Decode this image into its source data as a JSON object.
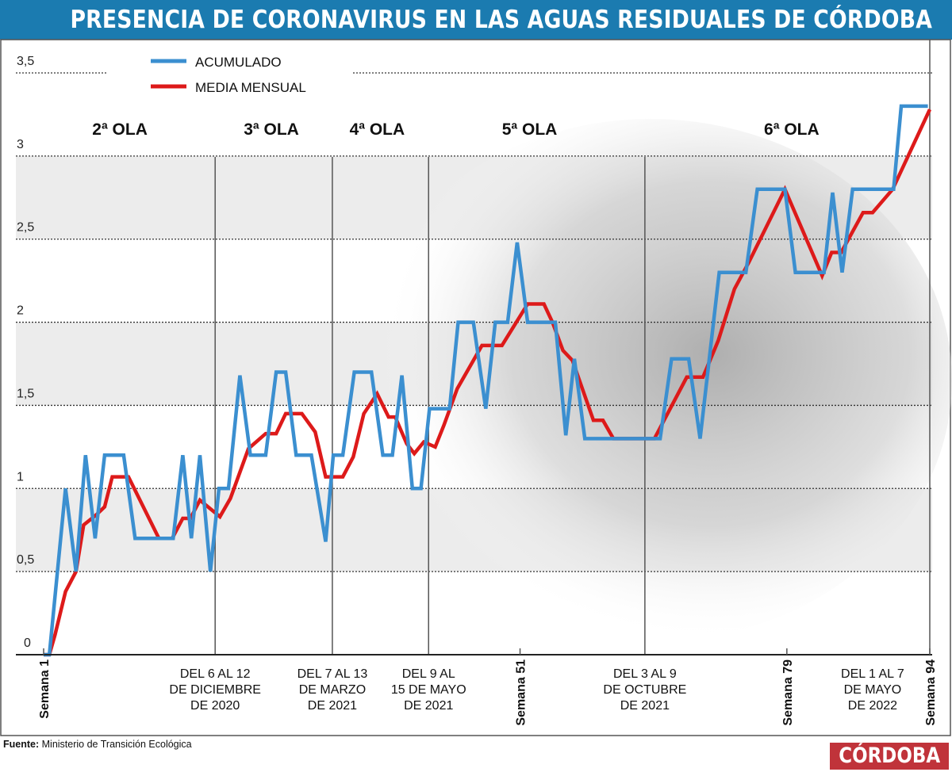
{
  "title": "PRESENCIA DE CORONAVIRUS EN LAS AGUAS RESIDUALES DE CÓRDOBA",
  "source_label": "Fuente:",
  "source_text": "Ministerio de Transición Ecológica",
  "logo": "CÓRDOBA",
  "colors": {
    "title_bar": "#1b7bb0",
    "acumulado": "#3b8fd0",
    "media_mensual": "#dd1a1a",
    "logo": "#c0333a"
  },
  "chart_data": {
    "type": "line",
    "title": "PRESENCIA DE CORONAVIRUS EN LAS AGUAS RESIDUALES DE CÓRDOBA",
    "xlabel": "",
    "ylabel": "",
    "xlim": [
      1,
      94
    ],
    "ylim": [
      0,
      3.5
    ],
    "yticks": [
      "0",
      "0,5",
      "1",
      "1,5",
      "2",
      "2,5",
      "3",
      "3,5"
    ],
    "grid": true,
    "legend_placement": "top-left",
    "x_labels": [
      {
        "week": 1,
        "text": "Semana 1",
        "rotated": true
      },
      {
        "week": 19,
        "lines": [
          "DEL 6  AL 12",
          "DE DICIEMBRE",
          "DE 2020"
        ]
      },
      {
        "week": 31.3,
        "lines": [
          "DEL 7  AL 13",
          "DE MARZO",
          "DE 2021"
        ]
      },
      {
        "week": 41.4,
        "lines": [
          "DEL 9  AL",
          "15 DE MAYO",
          "DE 2021"
        ]
      },
      {
        "week": 51,
        "text": "Semana 51",
        "rotated": true
      },
      {
        "week": 64.1,
        "lines": [
          "DEL 3  AL 9",
          "DE OCTUBRE",
          "DE 2021"
        ]
      },
      {
        "week": 79,
        "text": "Semana 79",
        "rotated": true
      },
      {
        "week": 88,
        "lines": [
          "DEL 1 AL 7",
          "DE MAYO",
          "DE 2022"
        ]
      },
      {
        "week": 94,
        "text": "Semana 94",
        "rotated": true
      }
    ],
    "vertical_markers": [
      19,
      31.3,
      41.4,
      64.1,
      94
    ],
    "wave_labels": [
      {
        "week": 9,
        "text": "2ª OLA"
      },
      {
        "week": 24.9,
        "text": "3ª OLA"
      },
      {
        "week": 36,
        "text": "4ª OLA"
      },
      {
        "week": 52,
        "text": "5ª OLA"
      },
      {
        "week": 79.5,
        "text": "6ª OLA"
      }
    ],
    "series": [
      {
        "name": "ACUMULADO",
        "color": "#3b8fd0",
        "points": [
          [
            1,
            0
          ],
          [
            1.6,
            0
          ],
          [
            3.3,
            1.0
          ],
          [
            4.4,
            0.5
          ],
          [
            5.4,
            1.2
          ],
          [
            6.4,
            0.7
          ],
          [
            7.4,
            1.2
          ],
          [
            9.4,
            1.2
          ],
          [
            10.6,
            0.7
          ],
          [
            14.6,
            0.7
          ],
          [
            15.6,
            1.2
          ],
          [
            16.5,
            0.7
          ],
          [
            17.4,
            1.2
          ],
          [
            18.5,
            0.5
          ],
          [
            19.4,
            1.0
          ],
          [
            20.4,
            1.0
          ],
          [
            21.6,
            1.68
          ],
          [
            22.7,
            1.2
          ],
          [
            24.3,
            1.2
          ],
          [
            25.4,
            1.7
          ],
          [
            26.4,
            1.7
          ],
          [
            27.5,
            1.2
          ],
          [
            29.1,
            1.2
          ],
          [
            30.6,
            0.68
          ],
          [
            31.4,
            1.2
          ],
          [
            32.4,
            1.2
          ],
          [
            33.6,
            1.7
          ],
          [
            35.4,
            1.7
          ],
          [
            36.6,
            1.2
          ],
          [
            37.6,
            1.2
          ],
          [
            38.6,
            1.68
          ],
          [
            39.7,
            1.0
          ],
          [
            40.6,
            1.0
          ],
          [
            41.5,
            1.48
          ],
          [
            43.6,
            1.48
          ],
          [
            44.5,
            2.0
          ],
          [
            46.1,
            2.0
          ],
          [
            47.4,
            1.48
          ],
          [
            48.4,
            2.0
          ],
          [
            49.7,
            2.0
          ],
          [
            50.7,
            2.48
          ],
          [
            51.8,
            2.0
          ],
          [
            54.7,
            2.0
          ],
          [
            55.8,
            1.32
          ],
          [
            56.7,
            1.78
          ],
          [
            57.8,
            1.3
          ],
          [
            65.7,
            1.3
          ],
          [
            66.9,
            1.78
          ],
          [
            68.7,
            1.78
          ],
          [
            69.9,
            1.3
          ],
          [
            71.9,
            2.3
          ],
          [
            74.7,
            2.3
          ],
          [
            75.9,
            2.8
          ],
          [
            78.8,
            2.8
          ],
          [
            79.9,
            2.3
          ],
          [
            82.9,
            2.3
          ],
          [
            83.8,
            2.78
          ],
          [
            84.8,
            2.3
          ],
          [
            85.9,
            2.8
          ],
          [
            90.2,
            2.8
          ],
          [
            91.0,
            3.3
          ],
          [
            93.8,
            3.3
          ]
        ]
      },
      {
        "name": "MEDIA MENSUAL",
        "color": "#dd1a1a",
        "points": [
          [
            1,
            0
          ],
          [
            1.6,
            0
          ],
          [
            2.2,
            0.12
          ],
          [
            3.3,
            0.38
          ],
          [
            4.4,
            0.5
          ],
          [
            5.2,
            0.78
          ],
          [
            6.5,
            0.84
          ],
          [
            7.4,
            0.89
          ],
          [
            8.2,
            1.07
          ],
          [
            9.9,
            1.07
          ],
          [
            13.1,
            0.7
          ],
          [
            14.5,
            0.7
          ],
          [
            15.6,
            0.82
          ],
          [
            16.4,
            0.82
          ],
          [
            17.4,
            0.93
          ],
          [
            19.5,
            0.83
          ],
          [
            20.6,
            0.94
          ],
          [
            22.5,
            1.24
          ],
          [
            24.3,
            1.33
          ],
          [
            25.4,
            1.33
          ],
          [
            26.4,
            1.45
          ],
          [
            28.1,
            1.45
          ],
          [
            29.5,
            1.34
          ],
          [
            30.6,
            1.07
          ],
          [
            32.4,
            1.07
          ],
          [
            33.5,
            1.19
          ],
          [
            34.6,
            1.45
          ],
          [
            36.0,
            1.57
          ],
          [
            37.2,
            1.43
          ],
          [
            37.9,
            1.43
          ],
          [
            39.1,
            1.27
          ],
          [
            39.9,
            1.21
          ],
          [
            40.9,
            1.28
          ],
          [
            42.1,
            1.25
          ],
          [
            43.0,
            1.38
          ],
          [
            44.4,
            1.6
          ],
          [
            47.0,
            1.86
          ],
          [
            49.1,
            1.86
          ],
          [
            51.8,
            2.11
          ],
          [
            53.5,
            2.11
          ],
          [
            54.4,
            2.0
          ],
          [
            55.5,
            1.83
          ],
          [
            56.5,
            1.77
          ],
          [
            58.7,
            1.41
          ],
          [
            59.7,
            1.41
          ],
          [
            60.8,
            1.3
          ],
          [
            65.1,
            1.3
          ],
          [
            68.5,
            1.67
          ],
          [
            70.2,
            1.67
          ],
          [
            71.8,
            1.89
          ],
          [
            73.5,
            2.2
          ],
          [
            75.0,
            2.36
          ],
          [
            78.8,
            2.8
          ],
          [
            82.7,
            2.28
          ],
          [
            83.7,
            2.42
          ],
          [
            84.7,
            2.42
          ],
          [
            87.0,
            2.66
          ],
          [
            88.0,
            2.66
          ],
          [
            90.1,
            2.8
          ],
          [
            94,
            3.28
          ]
        ]
      }
    ]
  }
}
